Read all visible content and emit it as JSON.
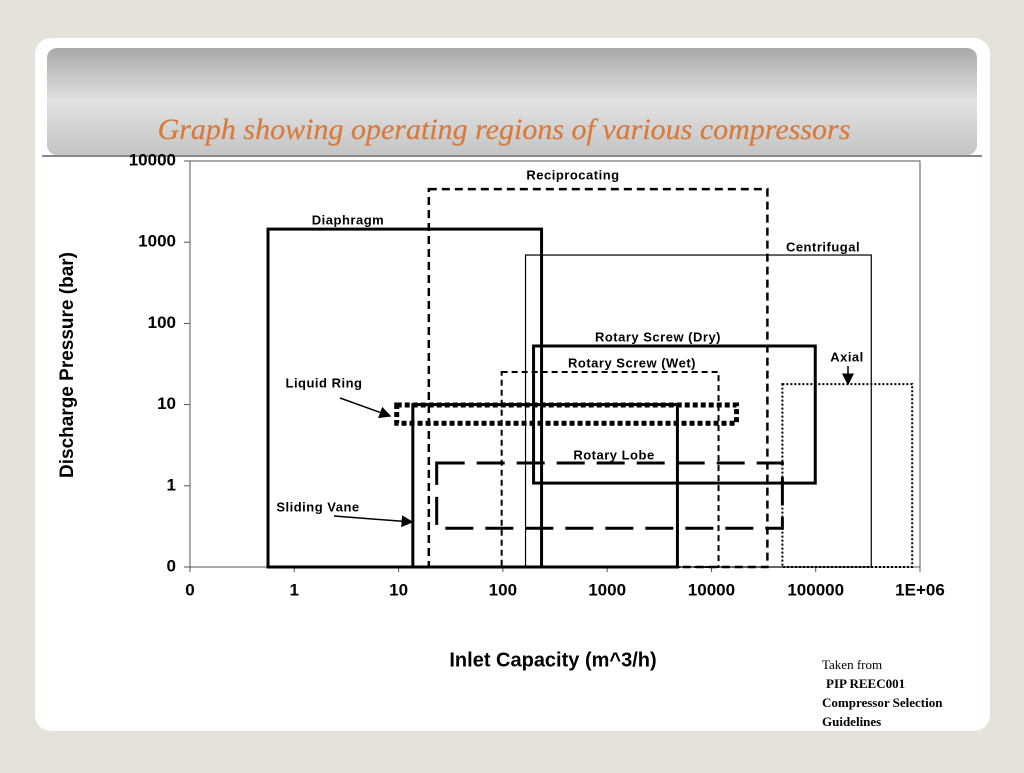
{
  "chart_data": {
    "type": "region",
    "title": "Graph showing operating regions of various compressors",
    "xlabel": "Inlet Capacity (m^3/h)",
    "ylabel": "Discharge Pressure (bar)",
    "xscale": "log",
    "yscale": "log",
    "xlim": [
      0.1,
      1000000
    ],
    "ylim": [
      0.1,
      10000
    ],
    "xticks": [
      {
        "value": 0.1,
        "label": "0"
      },
      1,
      10,
      100,
      1000,
      10000,
      100000,
      {
        "value": 1000000,
        "label": "1E+06"
      }
    ],
    "yticks": [
      {
        "value": 0.1,
        "label": "0"
      },
      1,
      10,
      100,
      1000,
      10000
    ],
    "grid": false,
    "series": [
      {
        "name": "Reciprocating",
        "x": [
          19.5,
          34400
        ],
        "y": [
          0.1,
          4500
        ],
        "line": "dashed",
        "width": 2.5,
        "color": "#000000"
      },
      {
        "name": "Diaphragm",
        "x": [
          0.56,
          235
        ],
        "y": [
          0.1,
          1450
        ],
        "line": "solid",
        "width": 3,
        "color": "#000000"
      },
      {
        "name": "Centrifugal",
        "x": [
          165,
          341000
        ],
        "y": [
          0.1,
          695
        ],
        "line": "solid",
        "width": 1.2,
        "color": "#000000"
      },
      {
        "name": "Rotary Screw (Dry)",
        "x": [
          197,
          99000
        ],
        "y": [
          1.08,
          52.7
        ],
        "line": "solid",
        "width": 3,
        "color": "#000000"
      },
      {
        "name": "Rotary Screw (Wet)",
        "x": [
          97.4,
          11700
        ],
        "y": [
          0.1,
          25.2
        ],
        "line": "short-dash",
        "width": 2,
        "color": "#000000"
      },
      {
        "name": "Axial",
        "x": [
          47900,
          842000
        ],
        "y": [
          0.1,
          17.9
        ],
        "line": "dotted",
        "width": 2,
        "color": "#000000"
      },
      {
        "name": "Liquid Ring",
        "x": [
          9.6,
          17400
        ],
        "y": [
          5.9,
          9.9
        ],
        "line": "thick-dotted",
        "width": 5,
        "color": "#000000"
      },
      {
        "name": "Sliding Vane",
        "x": [
          13.7,
          4720
        ],
        "y": [
          0.1,
          10
        ],
        "line": "solid",
        "width": 3,
        "color": "#000000"
      },
      {
        "name": "Rotary Lobe",
        "x": [
          23.2,
          47900
        ],
        "y": [
          0.3,
          1.91
        ],
        "line": "long-dash",
        "width": 3,
        "color": "#000000"
      }
    ]
  },
  "source": [
    "Taken from",
    "PIP REEC001",
    "Compressor Selection",
    "Guidelines"
  ]
}
